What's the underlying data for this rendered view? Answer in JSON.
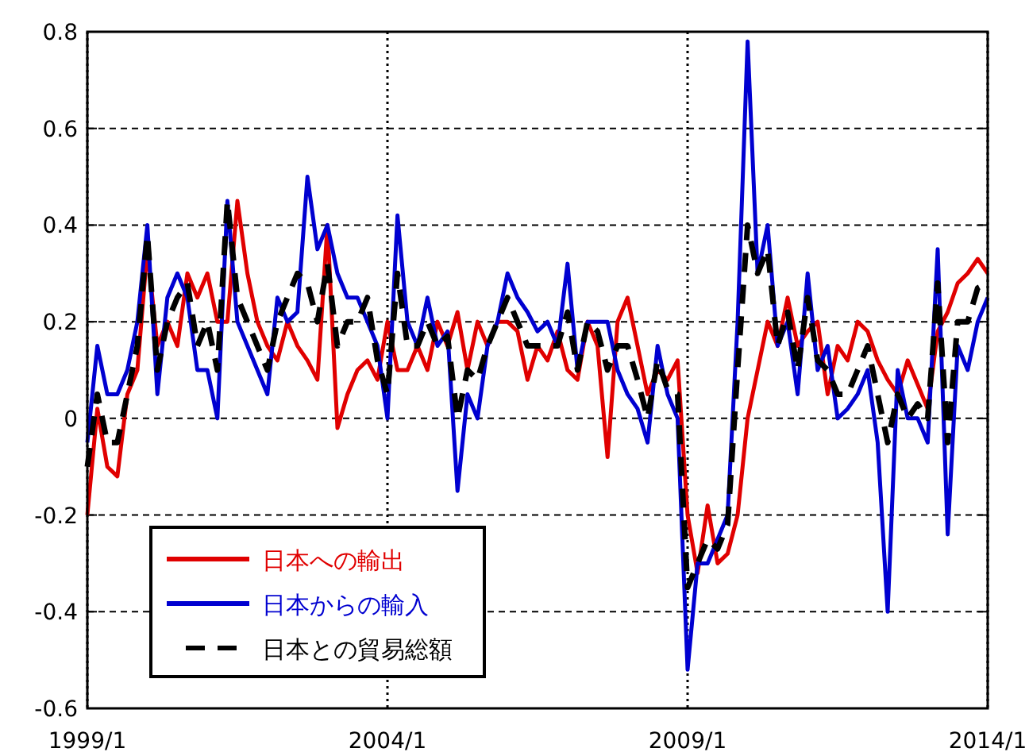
{
  "chart_data": {
    "type": "line",
    "x": [
      "1999-01",
      "1999-03",
      "1999-05",
      "1999-07",
      "1999-09",
      "1999-11",
      "2000-01",
      "2000-03",
      "2000-05",
      "2000-07",
      "2000-09",
      "2000-11",
      "2001-01",
      "2001-03",
      "2001-05",
      "2001-07",
      "2001-09",
      "2001-11",
      "2002-01",
      "2002-03",
      "2002-05",
      "2002-07",
      "2002-09",
      "2002-11",
      "2003-01",
      "2003-03",
      "2003-05",
      "2003-07",
      "2003-09",
      "2003-11",
      "2004-01",
      "2004-03",
      "2004-05",
      "2004-07",
      "2004-09",
      "2004-11",
      "2005-01",
      "2005-03",
      "2005-05",
      "2005-07",
      "2005-09",
      "2005-11",
      "2006-01",
      "2006-03",
      "2006-05",
      "2006-07",
      "2006-09",
      "2006-11",
      "2007-01",
      "2007-03",
      "2007-05",
      "2007-07",
      "2007-09",
      "2007-11",
      "2008-01",
      "2008-03",
      "2008-05",
      "2008-07",
      "2008-09",
      "2008-11",
      "2009-01",
      "2009-03",
      "2009-05",
      "2009-07",
      "2009-09",
      "2009-11",
      "2010-01",
      "2010-03",
      "2010-05",
      "2010-07",
      "2010-09",
      "2010-11",
      "2011-01",
      "2011-03",
      "2011-05",
      "2011-07",
      "2011-09",
      "2011-11",
      "2012-01",
      "2012-03",
      "2012-05",
      "2012-07",
      "2012-09",
      "2012-11",
      "2013-01",
      "2013-03",
      "2013-05",
      "2013-07",
      "2013-09",
      "2013-11",
      "2014-01"
    ],
    "series": [
      {
        "name": "日本への輸出",
        "color": "#e00000",
        "line_style": "solid",
        "values": [
          -0.2,
          0.02,
          -0.1,
          -0.12,
          0.05,
          0.1,
          0.35,
          0.15,
          0.2,
          0.15,
          0.3,
          0.25,
          0.3,
          0.2,
          0.2,
          0.45,
          0.3,
          0.2,
          0.15,
          0.12,
          0.2,
          0.15,
          0.12,
          0.08,
          0.4,
          -0.02,
          0.05,
          0.1,
          0.12,
          0.08,
          0.2,
          0.1,
          0.1,
          0.15,
          0.1,
          0.2,
          0.15,
          0.22,
          0.1,
          0.2,
          0.15,
          0.2,
          0.2,
          0.18,
          0.08,
          0.15,
          0.12,
          0.18,
          0.1,
          0.08,
          0.2,
          0.15,
          -0.08,
          0.2,
          0.25,
          0.15,
          0.05,
          0.1,
          0.08,
          0.12,
          -0.2,
          -0.32,
          -0.18,
          -0.3,
          -0.28,
          -0.2,
          0.0,
          0.1,
          0.2,
          0.15,
          0.25,
          0.15,
          0.18,
          0.2,
          0.05,
          0.15,
          0.12,
          0.2,
          0.18,
          0.12,
          0.08,
          0.05,
          0.12,
          0.07,
          0.02,
          0.18,
          0.22,
          0.28,
          0.3,
          0.33,
          0.3
        ]
      },
      {
        "name": "日本からの輸入",
        "color": "#0000d0",
        "line_style": "solid",
        "values": [
          -0.05,
          0.15,
          0.05,
          0.05,
          0.1,
          0.2,
          0.4,
          0.05,
          0.25,
          0.3,
          0.25,
          0.1,
          0.1,
          0.0,
          0.45,
          0.2,
          0.15,
          0.1,
          0.05,
          0.25,
          0.2,
          0.22,
          0.5,
          0.35,
          0.4,
          0.3,
          0.25,
          0.25,
          0.2,
          0.15,
          0.0,
          0.42,
          0.2,
          0.15,
          0.25,
          0.15,
          0.18,
          -0.15,
          0.05,
          0.0,
          0.15,
          0.2,
          0.3,
          0.25,
          0.22,
          0.18,
          0.2,
          0.15,
          0.32,
          0.1,
          0.2,
          0.2,
          0.2,
          0.1,
          0.05,
          0.02,
          -0.05,
          0.15,
          0.05,
          0.0,
          -0.52,
          -0.3,
          -0.3,
          -0.25,
          -0.2,
          0.2,
          0.78,
          0.3,
          0.4,
          0.15,
          0.2,
          0.05,
          0.3,
          0.1,
          0.15,
          0.0,
          0.02,
          0.05,
          0.1,
          -0.05,
          -0.4,
          0.1,
          0.0,
          0.0,
          -0.05,
          0.35,
          -0.24,
          0.15,
          0.1,
          0.2,
          0.25
        ]
      },
      {
        "name": "日本との貿易総額",
        "color": "#000000",
        "line_style": "dashed",
        "values": [
          -0.1,
          0.05,
          -0.05,
          -0.05,
          0.05,
          0.15,
          0.38,
          0.1,
          0.2,
          0.25,
          0.28,
          0.15,
          0.2,
          0.1,
          0.45,
          0.25,
          0.2,
          0.15,
          0.1,
          0.2,
          0.25,
          0.3,
          0.28,
          0.2,
          0.32,
          0.15,
          0.2,
          0.2,
          0.25,
          0.12,
          0.05,
          0.3,
          0.15,
          0.15,
          0.2,
          0.15,
          0.17,
          0.0,
          0.1,
          0.08,
          0.15,
          0.2,
          0.25,
          0.2,
          0.15,
          0.15,
          0.15,
          0.15,
          0.22,
          0.1,
          0.2,
          0.18,
          0.1,
          0.15,
          0.15,
          0.08,
          0.0,
          0.12,
          0.06,
          0.05,
          -0.35,
          -0.3,
          -0.25,
          -0.27,
          -0.22,
          0.1,
          0.4,
          0.3,
          0.35,
          0.15,
          0.22,
          0.1,
          0.25,
          0.12,
          0.1,
          0.05,
          0.05,
          0.1,
          0.15,
          0.05,
          -0.05,
          0.05,
          0.0,
          0.03,
          0.0,
          0.28,
          -0.05,
          0.2,
          0.2,
          0.27,
          0.28
        ]
      }
    ],
    "xlim": [
      "1999-01",
      "2014-01"
    ],
    "xticks": [
      {
        "value": "1999-01",
        "label": "1999/1"
      },
      {
        "value": "2004-01",
        "label": "2004/1"
      },
      {
        "value": "2009-01",
        "label": "2009/1"
      },
      {
        "value": "2014-01",
        "label": "2014/1"
      }
    ],
    "ylim": [
      -0.6,
      0.8
    ],
    "yticks": [
      -0.6,
      -0.4,
      -0.2,
      0,
      0.2,
      0.4,
      0.6,
      0.8
    ],
    "grid": true,
    "legend": "bottom left"
  }
}
